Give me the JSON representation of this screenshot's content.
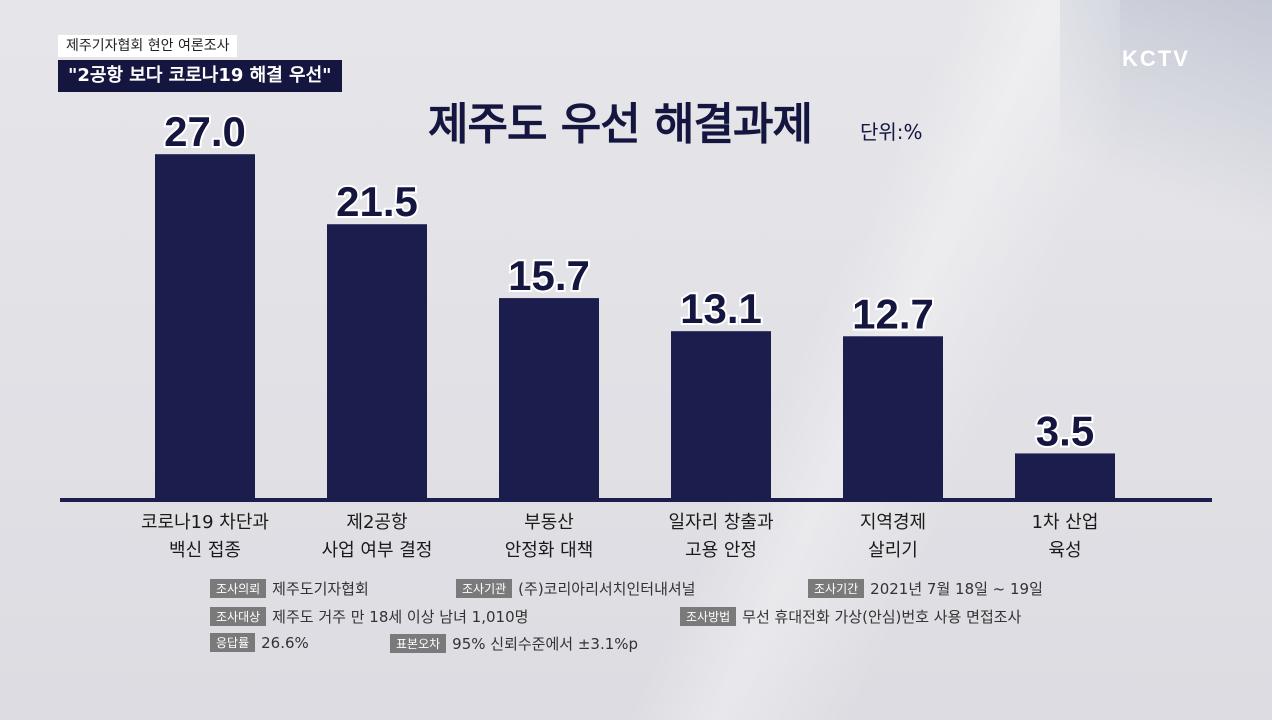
{
  "caption": {
    "top": "제주기자협회 현안 여론조사",
    "main": "\"2공항 보다 코로나19 해결 우선\""
  },
  "logo": "KCTV",
  "title": "제주도 우선 해결과제",
  "unit": "단위:%",
  "chart_data": {
    "type": "bar",
    "title": "제주도 우선 해결과제",
    "unit": "%",
    "categories": [
      [
        "코로나19 차단과",
        "백신 접종"
      ],
      [
        "제2공항",
        "사업 여부 결정"
      ],
      [
        "부동산",
        "안정화 대책"
      ],
      [
        "일자리 창출과",
        "고용 안정"
      ],
      [
        "지역경제",
        "살리기"
      ],
      [
        "1차 산업",
        "육성"
      ]
    ],
    "values": [
      27.0,
      21.5,
      15.7,
      13.1,
      12.7,
      3.5
    ],
    "value_labels": [
      "27.0",
      "21.5",
      "15.7",
      "13.1",
      "12.7",
      "3.5"
    ],
    "ylim": [
      0,
      30
    ],
    "grid": false,
    "bar_color": "#1b1d4d"
  },
  "survey_info": {
    "client_tag": "조사의뢰",
    "client": "제주도기자협회",
    "agency_tag": "조사기관",
    "agency": "(주)코리아리서치인터내셔널",
    "period_tag": "조사기간",
    "period": "2021년 7월 18일 ~ 19일",
    "target_tag": "조사대상",
    "target": "제주도 거주 만 18세 이상 남녀 1,010명",
    "method_tag": "조사방법",
    "method": "무선 휴대전화 가상(안심)번호 사용 면접조사",
    "response_tag": "응답률",
    "response": "26.6%",
    "error_tag": "표본오차",
    "error": "95% 신뢰수준에서 ±3.1%p"
  }
}
